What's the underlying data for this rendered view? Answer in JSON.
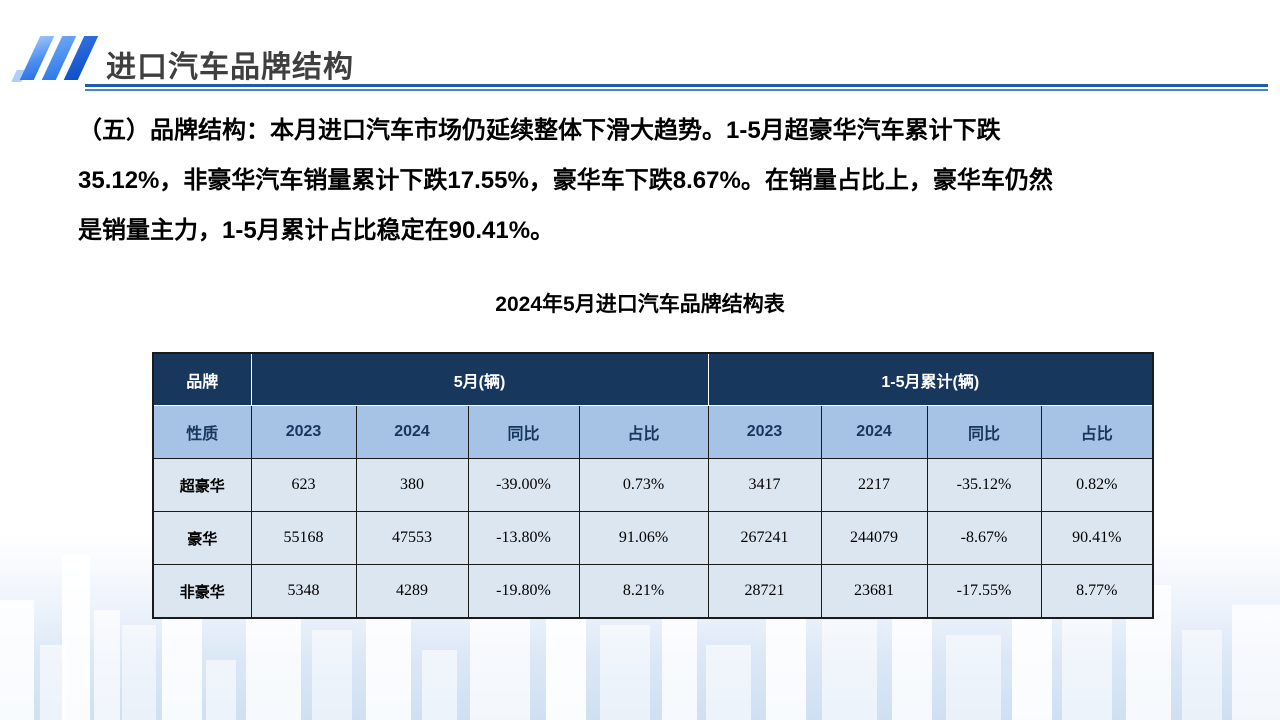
{
  "header": {
    "title": "进口汽车品牌结构"
  },
  "body": {
    "lines": [
      "（五）品牌结构：本月进口汽车市场仍延续整体下滑大趋势。1-5月超豪华汽车累计下跌",
      "35.12%，非豪华汽车销量累计下跌17.55%，豪华车下跌8.67%。在销量占比上，豪华车仍然",
      "是销量主力，1-5月累计占比稳定在90.41%。"
    ]
  },
  "table": {
    "title": "2024年5月进口汽车品牌结构表",
    "header_row1": {
      "brand": "品牌",
      "may_group": "5月(辆)",
      "cum_group": "1-5月累计(辆)"
    },
    "header_row2": [
      "性质",
      "2023",
      "2024",
      "同比",
      "占比",
      "2023",
      "2024",
      "同比",
      "占比"
    ],
    "rows": [
      [
        "超豪华",
        "623",
        "380",
        "-39.00%",
        "0.73%",
        "3417",
        "2217",
        "-35.12%",
        "0.82%"
      ],
      [
        "豪华",
        "55168",
        "47553",
        "-13.80%",
        "91.06%",
        "267241",
        "244079",
        "-8.67%",
        "90.41%"
      ],
      [
        "非豪华",
        "5348",
        "4289",
        "-19.80%",
        "8.21%",
        "28721",
        "23681",
        "-17.55%",
        "8.77%"
      ]
    ]
  },
  "colors": {
    "table_header_navy": "#17375D",
    "table_subheader_blue": "#A6C2E4",
    "table_row_blue": "#DCE6F1",
    "accent_slash_blue": "#2F7BE8",
    "underline_blue": "#1A5CB0",
    "title_gray": "#3F3F3F"
  }
}
